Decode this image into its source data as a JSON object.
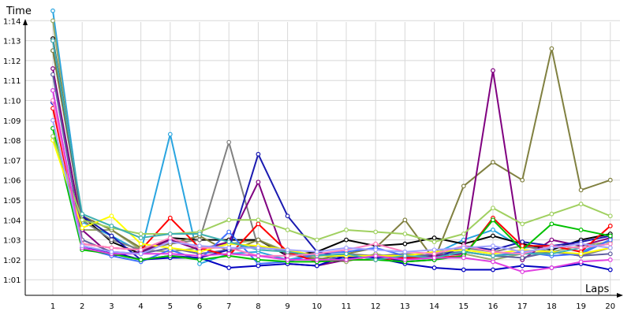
{
  "chart_data": {
    "type": "line",
    "xlabel": "Laps",
    "ylabel": "Time",
    "x": [
      1,
      2,
      3,
      4,
      5,
      6,
      7,
      8,
      9,
      10,
      11,
      12,
      13,
      14,
      15,
      16,
      17,
      18,
      19,
      20
    ],
    "x_tick_labels": [
      "1",
      "2",
      "3",
      "4",
      "5",
      "6",
      "7",
      "8",
      "9",
      "10",
      "11",
      "12",
      "13",
      "14",
      "15",
      "16",
      "17",
      "18",
      "19",
      "20"
    ],
    "y_tick_labels": [
      "1:01",
      "1:02",
      "1:03",
      "1:04",
      "1:05",
      "1:06",
      "1:07",
      "1:08",
      "1:09",
      "1:10",
      "1:11",
      "1:12",
      "1:13",
      "1:14"
    ],
    "ylim_seconds": [
      60,
      75
    ],
    "grid": true,
    "series": [
      {
        "color": "#2aa5e0",
        "values": [
          74.5,
          63.9,
          63.2,
          62.4,
          68.3,
          61.8,
          62.3,
          62.4,
          62.0,
          62.3,
          62.0,
          62.2,
          62.1,
          62.3,
          63.0,
          63.5,
          62.6,
          62.7,
          62.4,
          63.0
        ]
      },
      {
        "color": "#9aaa6a",
        "values": [
          74.0,
          63.5,
          63.5,
          62.5,
          62.4,
          62.6,
          62.8,
          63.0,
          62.4,
          62.1,
          61.9,
          62.3,
          62.0,
          62.2,
          62.3,
          62.0,
          62.3,
          62.4,
          62.7,
          62.9
        ]
      },
      {
        "color": "#000000",
        "values": [
          73.1,
          64.2,
          62.9,
          62.3,
          63.1,
          63.0,
          63.0,
          63.0,
          62.2,
          62.4,
          63.0,
          62.7,
          62.8,
          63.1,
          62.8,
          63.2,
          62.8,
          62.5,
          63.0,
          63.3
        ]
      },
      {
        "color": "#808080",
        "values": [
          72.5,
          64.0,
          63.0,
          62.5,
          62.8,
          63.0,
          67.9,
          62.6,
          62.5,
          62.0,
          62.3,
          62.2,
          62.3,
          62.2,
          62.6,
          62.4,
          62.7,
          62.4,
          62.2,
          62.6
        ]
      },
      {
        "color": "#808040",
        "values": [
          72.5,
          64.2,
          63.5,
          62.6,
          62.8,
          63.2,
          62.4,
          63.0,
          62.3,
          62.0,
          62.3,
          62.6,
          64.0,
          62.0,
          65.7,
          66.9,
          66.0,
          72.6,
          65.5,
          66.0
        ]
      },
      {
        "color": "#800080",
        "values": [
          71.6,
          63.5,
          62.2,
          62.4,
          63.0,
          62.5,
          62.9,
          65.9,
          61.8,
          61.7,
          62.0,
          62.2,
          62.1,
          62.2,
          62.3,
          71.5,
          62.0,
          63.0,
          62.7,
          63.1
        ]
      },
      {
        "color": "#6060a0",
        "values": [
          71.3,
          63.0,
          62.4,
          62.3,
          62.6,
          62.3,
          62.5,
          62.7,
          62.4,
          61.9,
          62.2,
          62.1,
          62.0,
          62.3,
          62.4,
          62.2,
          62.1,
          62.4,
          62.2,
          62.3
        ]
      },
      {
        "color": "#4070ff",
        "values": [
          70.5,
          62.6,
          62.2,
          61.9,
          62.5,
          62.0,
          63.4,
          61.8,
          61.9,
          62.3,
          62.4,
          62.6,
          62.2,
          62.1,
          62.4,
          62.2,
          62.4,
          62.2,
          62.3,
          63.0
        ]
      },
      {
        "color": "#0000c0",
        "values": [
          69.9,
          62.6,
          62.4,
          62.0,
          62.1,
          62.1,
          61.6,
          61.7,
          61.8,
          61.7,
          62.2,
          62.1,
          61.8,
          61.6,
          61.5,
          61.5,
          61.7,
          61.6,
          61.8,
          61.5
        ]
      },
      {
        "color": "#1a1ab0",
        "values": [
          73.0,
          64.2,
          63.2,
          62.0,
          62.2,
          62.1,
          62.5,
          67.3,
          64.2,
          62.4,
          62.1,
          62.2,
          61.9,
          62.0,
          62.7,
          62.5,
          62.9,
          62.7,
          62.9,
          63.2
        ]
      },
      {
        "color": "#ff0000",
        "values": [
          69.6,
          62.8,
          62.6,
          62.5,
          64.1,
          62.6,
          62.2,
          63.8,
          62.4,
          61.9,
          62.0,
          62.0,
          62.1,
          62.1,
          62.2,
          64.1,
          62.7,
          62.7,
          62.4,
          63.7
        ]
      },
      {
        "color": "#00c000",
        "values": [
          68.6,
          62.5,
          62.3,
          62.0,
          62.2,
          62.0,
          62.2,
          62.0,
          61.9,
          61.9,
          62.0,
          62.0,
          61.9,
          62.0,
          62.2,
          64.0,
          62.5,
          63.8,
          63.5,
          63.2
        ]
      },
      {
        "color": "#ffff00",
        "values": [
          68.0,
          63.6,
          64.2,
          62.8,
          62.6,
          62.4,
          62.8,
          62.7,
          62.5,
          62.2,
          62.2,
          62.2,
          62.2,
          62.4,
          62.5,
          62.3,
          62.5,
          62.4,
          62.3,
          62.6
        ]
      },
      {
        "color": "#a0d060",
        "values": [
          68.2,
          64.0,
          63.6,
          63.3,
          63.3,
          63.4,
          64.0,
          64.0,
          63.5,
          63.0,
          63.5,
          63.4,
          63.3,
          62.9,
          63.3,
          64.6,
          63.8,
          64.3,
          64.8,
          64.2
        ]
      },
      {
        "color": "#40b0b0",
        "values": [
          73.0,
          64.3,
          63.7,
          63.1,
          63.3,
          63.3,
          62.9,
          62.5,
          62.4,
          62.2,
          62.3,
          62.0,
          62.2,
          62.1,
          62.4,
          62.2,
          62.3,
          62.3,
          62.6,
          62.8
        ]
      },
      {
        "color": "#ff80c0",
        "values": [
          70.0,
          62.8,
          62.6,
          62.5,
          63.1,
          62.6,
          62.6,
          62.2,
          62.2,
          62.3,
          62.5,
          62.8,
          62.4,
          62.3,
          62.7,
          62.4,
          62.3,
          62.7,
          62.6,
          62.8
        ]
      },
      {
        "color": "#e040e0",
        "values": [
          70.5,
          62.6,
          62.3,
          62.3,
          62.3,
          62.2,
          62.3,
          62.2,
          62.0,
          62.0,
          62.0,
          62.2,
          62.0,
          62.1,
          62.1,
          61.9,
          61.4,
          61.6,
          61.9,
          62.0
        ]
      },
      {
        "color": "#a0a0ff",
        "values": [
          69.0,
          62.7,
          62.4,
          62.3,
          62.9,
          62.7,
          62.6,
          62.6,
          62.5,
          62.4,
          62.6,
          62.5,
          62.4,
          62.5,
          62.6,
          62.7,
          62.4,
          62.6,
          62.8,
          62.6
        ]
      }
    ]
  }
}
